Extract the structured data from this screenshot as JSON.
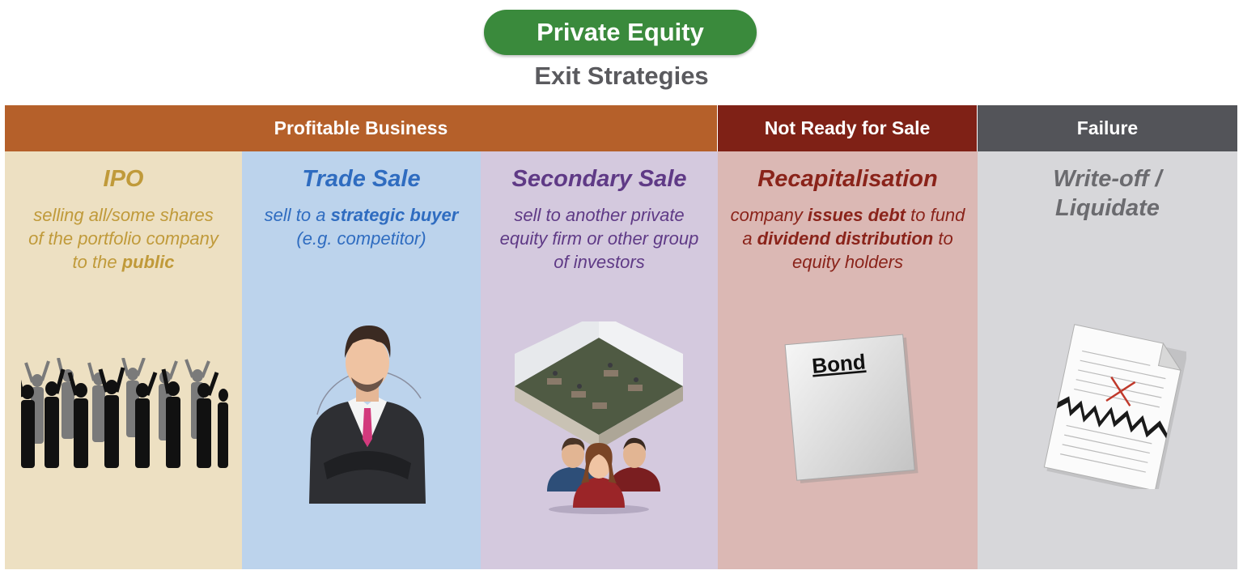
{
  "header": {
    "title": "Private Equity",
    "subtitle": "Exit Strategies"
  },
  "categories": [
    {
      "label": "Profitable Business",
      "color": "#b5602a"
    },
    {
      "label": "Not Ready for Sale",
      "color": "#7f2116"
    },
    {
      "label": "Failure",
      "color": "#535459"
    }
  ],
  "columns": [
    {
      "title": "IPO",
      "desc": [
        "selling all/some shares",
        "of the portfolio company",
        "to the ",
        "public"
      ],
      "bg": "#ede0c2",
      "accent": "#c09a3a"
    },
    {
      "title": "Trade Sale",
      "desc": [
        "sell to a ",
        "strategic buyer",
        "(e.g. competitor)"
      ],
      "bg": "#bcd3ec",
      "accent": "#2f6cc0"
    },
    {
      "title": "Secondary Sale",
      "desc": [
        "sell to another private",
        "equity firm or other group",
        "of investors"
      ],
      "bg": "#d4c9de",
      "accent": "#5f3a86"
    },
    {
      "title": "Recapitalisation",
      "desc": [
        "company ",
        "issues debt",
        " to fund",
        "a ",
        "dividend distribution",
        " to",
        "equity holders"
      ],
      "bg": "#dbb8b4",
      "accent": "#8a231a"
    },
    {
      "title_lines": [
        "Write-off /",
        "Liquidate"
      ],
      "bg": "#d7d7da",
      "accent": "#6b6b6f"
    }
  ],
  "bond_label": "Bond"
}
